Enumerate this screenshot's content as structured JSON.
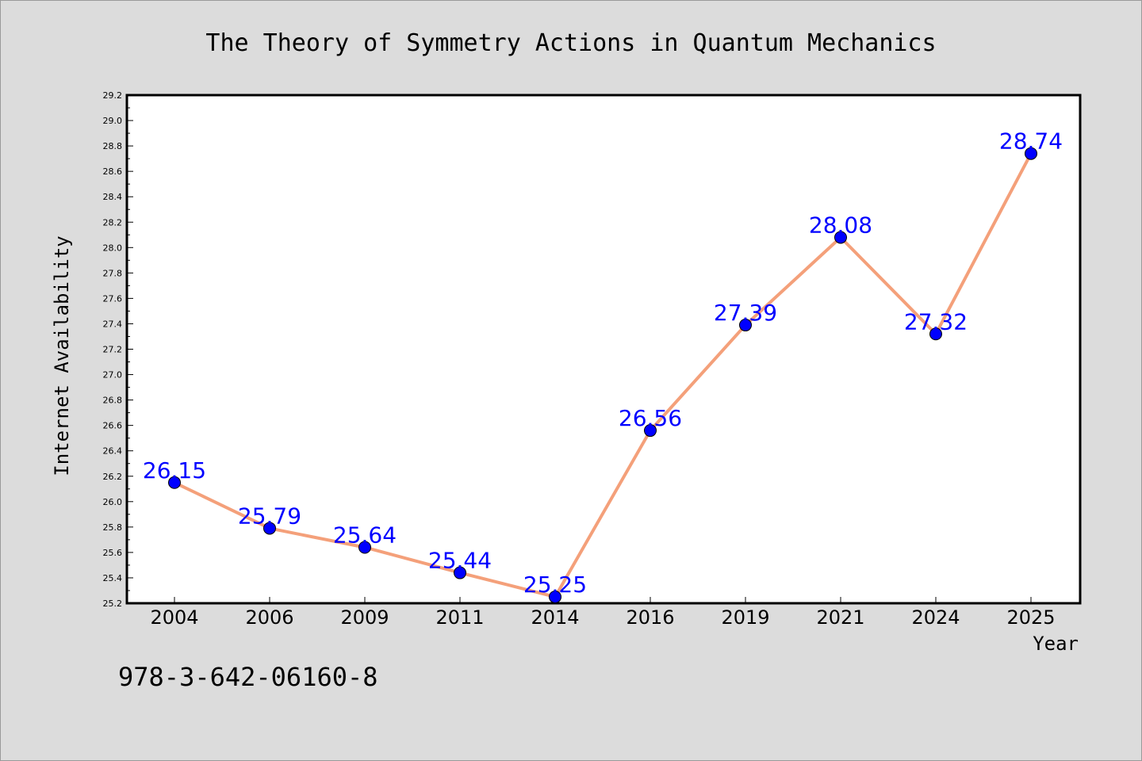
{
  "chart_data": {
    "type": "line",
    "title": "The Theory of Symmetry Actions in Quantum Mechanics",
    "xlabel": "Year",
    "ylabel": "Internet Availability",
    "categories": [
      "2004",
      "2006",
      "2009",
      "2011",
      "2014",
      "2016",
      "2019",
      "2021",
      "2024",
      "2025"
    ],
    "series": [
      {
        "values": [
          26.15,
          25.79,
          25.64,
          25.44,
          25.25,
          26.56,
          27.39,
          28.08,
          27.32,
          28.74
        ],
        "data_labels": [
          "26.15",
          "25.79",
          "25.64",
          "25.44",
          "25.25",
          "26.56",
          "27.39",
          "28.08",
          "27.32",
          "28.74"
        ]
      }
    ],
    "ylim": [
      25.2,
      29.2
    ],
    "y_ticks": [
      "25.2",
      "25.4",
      "25.6",
      "25.8",
      "26.0",
      "26.2",
      "26.4",
      "26.6",
      "26.8",
      "27.0",
      "27.2",
      "27.4",
      "27.6",
      "27.8",
      "28.0",
      "28.2",
      "28.4",
      "28.6",
      "28.8",
      "29.0",
      "29.2"
    ],
    "grid": false,
    "line_color": "#f4a07a",
    "marker_color": "#0000ff",
    "label_color": "#0000ff"
  },
  "footer": {
    "isbn": "978-3-642-06160-8"
  }
}
